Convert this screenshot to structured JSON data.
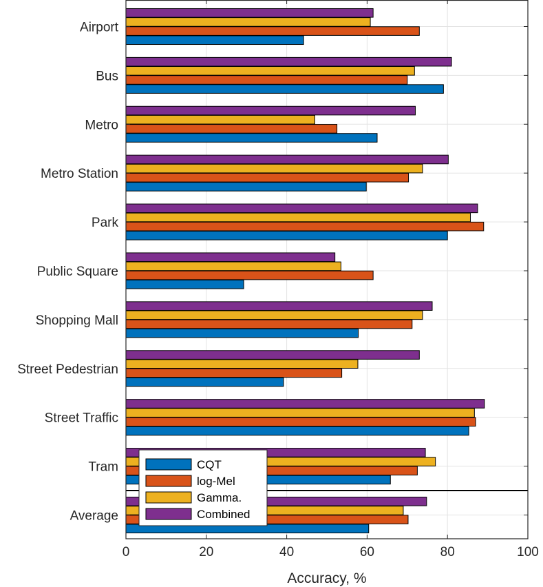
{
  "chart_data": {
    "type": "bar",
    "orientation": "horizontal",
    "title": "",
    "xlabel": "Accuracy, %",
    "ylabel": "",
    "xlim": [
      0,
      100
    ],
    "xticks": [
      0,
      20,
      40,
      60,
      80,
      100
    ],
    "grid": true,
    "categories": [
      "Airport",
      "Bus",
      "Metro",
      "Metro Station",
      "Park",
      "Public Square",
      "Shopping Mall",
      "Street Pedestrian",
      "Street Traffic",
      "Tram",
      "Average"
    ],
    "series": [
      {
        "name": "CQT",
        "color": "#0072BD",
        "values": [
          44.2,
          79.0,
          62.5,
          59.8,
          80.0,
          29.3,
          57.8,
          39.2,
          85.3,
          65.8,
          60.4
        ]
      },
      {
        "name": "log-Mel",
        "color": "#D95319",
        "values": [
          73.0,
          70.0,
          52.5,
          70.3,
          89.0,
          61.5,
          71.2,
          53.7,
          87.0,
          72.5,
          70.2
        ]
      },
      {
        "name": "Gamma.",
        "color": "#EDB120",
        "values": [
          60.8,
          71.8,
          47.0,
          73.8,
          85.7,
          53.5,
          73.8,
          57.7,
          86.7,
          77.0,
          69.0
        ]
      },
      {
        "name": "Combined",
        "color": "#7E2F8E",
        "values": [
          61.5,
          81.0,
          72.0,
          80.2,
          87.5,
          52.0,
          76.2,
          73.0,
          89.2,
          74.5,
          74.8
        ]
      }
    ],
    "legend_position": "bottom-left"
  }
}
